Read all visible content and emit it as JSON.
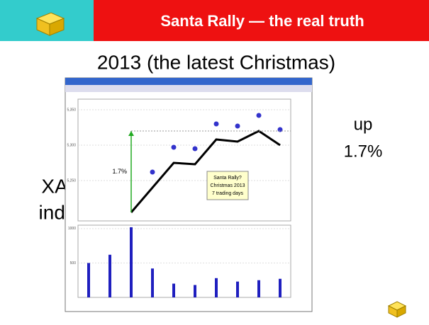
{
  "header": {
    "title": "Santa Rally — the real truth",
    "subtitle": "2013 (the latest Christmas)"
  },
  "side_labels": {
    "left": [
      "XAO",
      "index"
    ],
    "right": [
      "up",
      "1.7%"
    ]
  },
  "chart_data": [
    {
      "type": "line",
      "categories": [
        null,
        null,
        null,
        null,
        null,
        null,
        null,
        null,
        null,
        null
      ],
      "series": [
        {
          "name": "XAO",
          "color": "#000000",
          "values": [
            null,
            null,
            5205,
            5240,
            5275,
            5273,
            5308,
            5305,
            5320,
            5300
          ]
        }
      ],
      "ylim": [
        5193,
        5365
      ],
      "yticks": [
        {
          "value": 5250,
          "label": "5,250"
        },
        {
          "value": 5300,
          "label": "5,300"
        },
        {
          "value": 5350,
          "label": "5,350"
        }
      ],
      "annotations": [
        "1.7%",
        "Santa Rally?",
        "Christmas 2013",
        "7 trading days"
      ]
    },
    {
      "type": "bar",
      "categories": [
        null,
        null,
        null,
        null,
        null,
        null,
        null,
        null,
        null,
        null
      ],
      "values": [
        500,
        620,
        1020,
        420,
        200,
        180,
        280,
        230,
        250,
        270
      ],
      "color": "#1f1fbf",
      "ylim": [
        0,
        1050
      ],
      "yticks": [
        500,
        1000
      ]
    }
  ]
}
